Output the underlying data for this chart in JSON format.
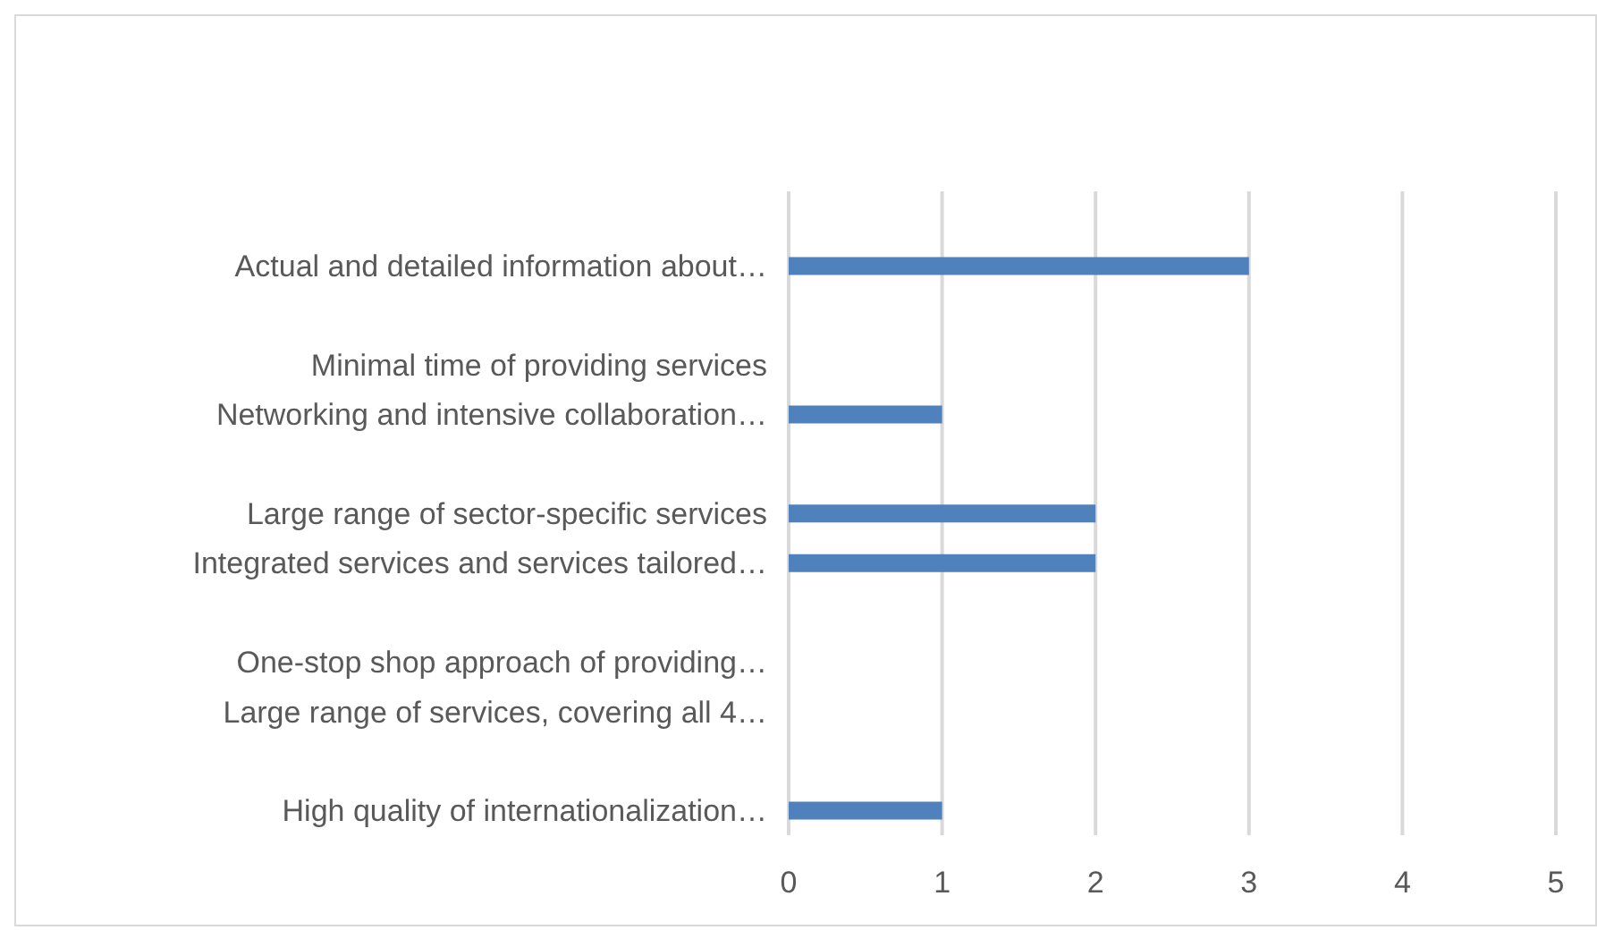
{
  "chart_data": {
    "type": "bar",
    "orientation": "horizontal",
    "categories": [
      null,
      "Actual and detailed  information about…",
      null,
      "Minimal time of providing services",
      "Networking and intensive collaboration…",
      null,
      "Large range of sector-specific services",
      "Integrated services and services tailored…",
      null,
      "One-stop shop approach of providing…",
      "Large range of services, covering all 4…",
      null,
      "High quality of  internationalization…"
    ],
    "values": [
      null,
      3,
      null,
      0,
      1,
      null,
      2,
      2,
      null,
      0,
      0,
      null,
      1
    ],
    "color": "#4f81bd",
    "xlim": [
      0,
      5
    ],
    "xticks": [
      0,
      1,
      2,
      3,
      4,
      5
    ],
    "grid": "x"
  }
}
